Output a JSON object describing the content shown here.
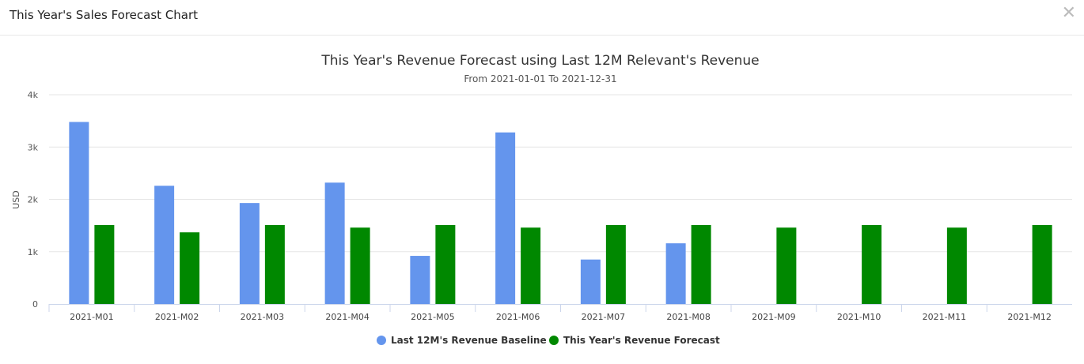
{
  "dialog": {
    "title": "This Year's Sales Forecast Chart",
    "close_icon": "close-icon"
  },
  "chart_data": {
    "type": "bar",
    "title": "This Year's Revenue Forecast using Last 12M Relevant's Revenue",
    "subtitle": "From 2021-01-01 To 2021-12-31",
    "xlabel": "",
    "ylabel": "USD",
    "ylim": [
      0,
      4000
    ],
    "yticks": [
      {
        "v": 0,
        "label": "0"
      },
      {
        "v": 1000,
        "label": "1k"
      },
      {
        "v": 2000,
        "label": "2k"
      },
      {
        "v": 3000,
        "label": "3k"
      },
      {
        "v": 4000,
        "label": "4k"
      }
    ],
    "grid": true,
    "legend_position": "bottom",
    "categories": [
      "2021-M01",
      "2021-M02",
      "2021-M03",
      "2021-M04",
      "2021-M05",
      "2021-M06",
      "2021-M07",
      "2021-M08",
      "2021-M09",
      "2021-M10",
      "2021-M11",
      "2021-M12"
    ],
    "series": [
      {
        "name": "Last 12M's Revenue Baseline",
        "color": "#6495ED",
        "values": [
          3480,
          2260,
          1930,
          2320,
          920,
          3280,
          850,
          1160,
          null,
          null,
          null,
          null
        ]
      },
      {
        "name": "This Year's Revenue Forecast",
        "color": "#008800",
        "values": [
          1510,
          1370,
          1510,
          1460,
          1510,
          1460,
          1510,
          1510,
          1460,
          1510,
          1460,
          1510
        ]
      }
    ]
  }
}
